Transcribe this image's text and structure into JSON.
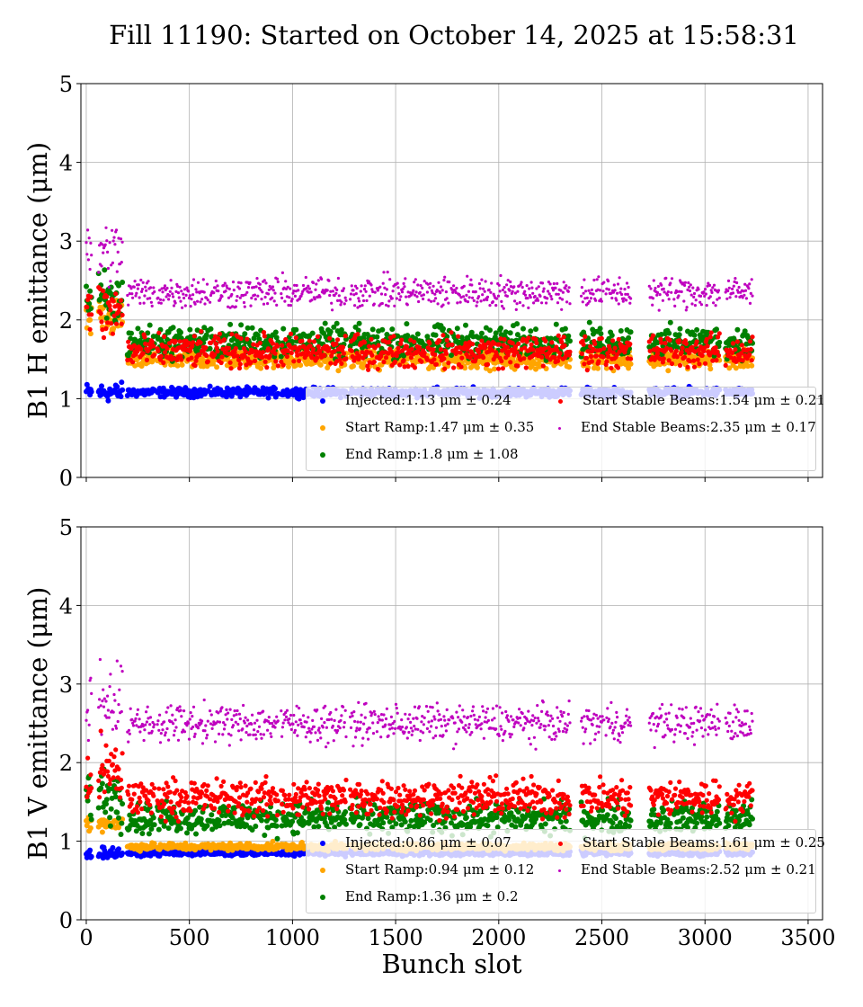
{
  "chart_data": {
    "type": "scatter",
    "title": "Fill 11190: Started on October 14, 2025 at 15:58:31",
    "xlabel": "Bunch slot",
    "xlim": [
      -26,
      3570
    ],
    "xticks": [
      0,
      500,
      1000,
      1500,
      2000,
      2500,
      3000,
      3500
    ],
    "grid": true,
    "trains": [
      [
        0,
        25
      ],
      [
        60,
        175
      ],
      [
        200,
        330
      ],
      [
        345,
        465
      ],
      [
        470,
        590
      ],
      [
        600,
        720
      ],
      [
        725,
        805
      ],
      [
        810,
        930
      ],
      [
        945,
        1060
      ],
      [
        1065,
        1180
      ],
      [
        1185,
        1260
      ],
      [
        1280,
        1400
      ],
      [
        1410,
        1520
      ],
      [
        1525,
        1640
      ],
      [
        1650,
        1760
      ],
      [
        1770,
        1880
      ],
      [
        1885,
        1990
      ],
      [
        1995,
        2110
      ],
      [
        2115,
        2230
      ],
      [
        2235,
        2345
      ],
      [
        2400,
        2510
      ],
      [
        2520,
        2640
      ],
      [
        2730,
        2840
      ],
      [
        2850,
        2960
      ],
      [
        2965,
        3070
      ],
      [
        3100,
        3230
      ]
    ],
    "series": [
      {
        "key": "injected",
        "color": "#0000ff"
      },
      {
        "key": "start_ramp",
        "color": "#ffa500"
      },
      {
        "key": "end_ramp",
        "color": "#008000"
      },
      {
        "key": "start_stable",
        "color": "#ff0000"
      },
      {
        "key": "end_stable",
        "color": "#bf00bf"
      }
    ],
    "panels": [
      {
        "ylabel": "B1 H emittance (μm)",
        "ylim": [
          0,
          5
        ],
        "yticks": [
          0,
          1,
          2,
          3,
          4,
          5
        ],
        "means": {
          "injected": 1.08,
          "start_ramp": 1.5,
          "end_ramp": 1.72,
          "start_stable": 1.6,
          "end_stable": 2.35
        },
        "spreads": {
          "injected": 0.05,
          "start_ramp": 0.1,
          "end_ramp": 0.17,
          "start_stable": 0.17,
          "end_stable": 0.17
        },
        "legend": {
          "injected": "Injected:1.13 μm ± 0.24",
          "start_ramp": "Start Ramp:1.47 μm ± 0.35",
          "end_ramp": "End Ramp:1.8 μm ± 1.08",
          "start_stable": "Start Stable Beams:1.54 μm ± 0.21",
          "end_stable": "End Stable Beams:2.35 μm ± 0.17"
        }
      },
      {
        "ylabel": "B1 V emittance (μm)",
        "ylim": [
          0,
          5
        ],
        "yticks": [
          0,
          1,
          2,
          3,
          4,
          5
        ],
        "means": {
          "injected": 0.85,
          "start_ramp": 0.93,
          "end_ramp": 1.3,
          "start_stable": 1.55,
          "end_stable": 2.5
        },
        "spreads": {
          "injected": 0.03,
          "start_ramp": 0.04,
          "end_ramp": 0.17,
          "start_stable": 0.2,
          "end_stable": 0.2
        },
        "legend": {
          "injected": "Injected:0.86 μm ± 0.07",
          "start_ramp": "Start Ramp:0.94 μm ± 0.12",
          "end_ramp": "End Ramp:1.36 μm ± 0.2",
          "start_stable": "Start Stable Beams:1.61 μm ± 0.25",
          "end_stable": "End Stable Beams:2.52 μm ± 0.21"
        }
      }
    ]
  }
}
